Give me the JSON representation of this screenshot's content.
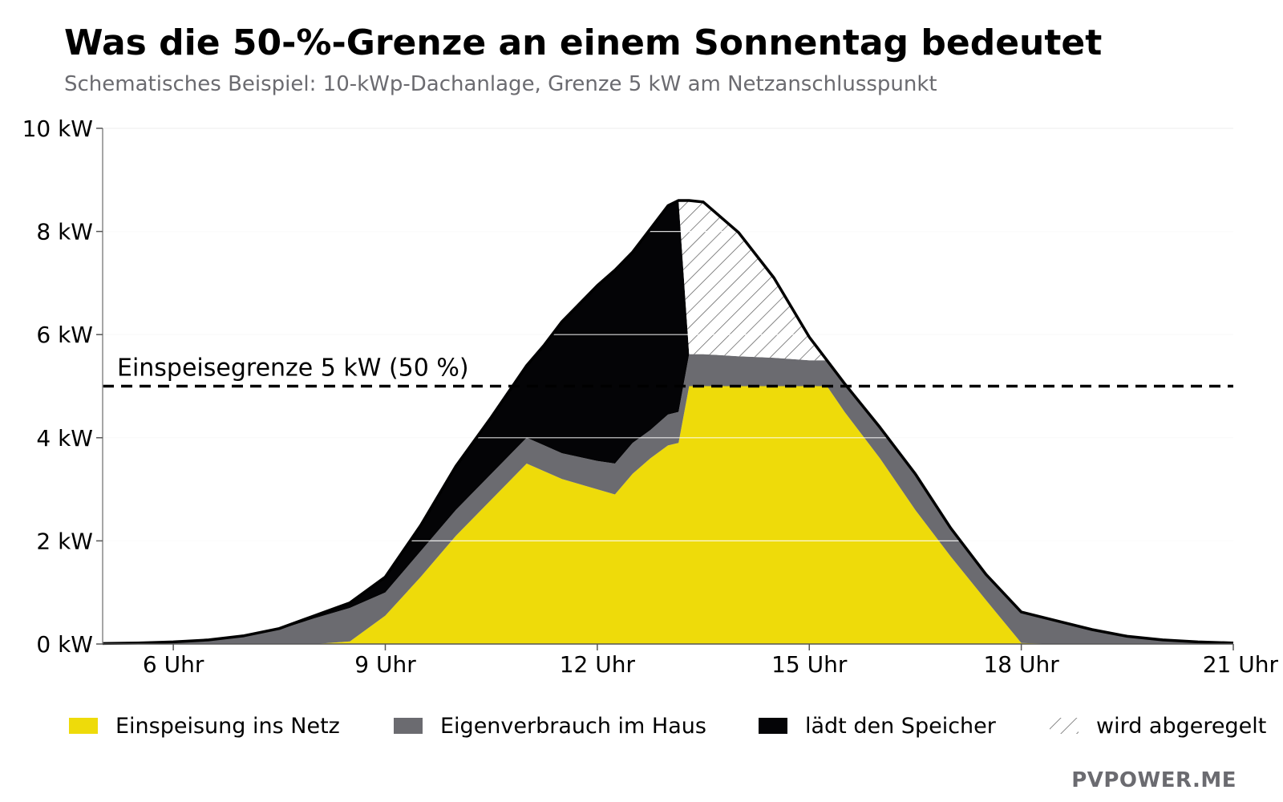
{
  "title": "Was die 50-%-Grenze an einem Sonnentag bedeutet",
  "subtitle": "Schematisches Beispiel: 10-kWp-Dachanlage, Grenze 5 kW am Netzanschlusspunkt",
  "brand": "PVPOWER.ME",
  "colors": {
    "einspeisung": "#eedb0a",
    "eigenverbrauch": "#6b6b70",
    "speicher": "#040406",
    "grid": "#ececec",
    "axis": "#888888"
  },
  "chart_data": {
    "type": "area",
    "stacked": true,
    "x_unit": "Uhr",
    "x": [
      5,
      5.5,
      6,
      6.5,
      7,
      7.5,
      8,
      8.5,
      9,
      9.5,
      10,
      10.5,
      11,
      11.25,
      11.5,
      12,
      12.25,
      12.5,
      12.75,
      13,
      13.15,
      13.3,
      13.5,
      14,
      14.5,
      15,
      15.25,
      15.5,
      16,
      16.5,
      17,
      17.5,
      18,
      18.5,
      19,
      19.5,
      20,
      20.5,
      21
    ],
    "series": [
      {
        "name": "Einspeisung ins Netz",
        "color": "#eedb0a",
        "values": [
          0,
          0,
          0,
          0,
          0,
          0,
          0,
          0.05,
          0.55,
          1.3,
          2.1,
          2.8,
          3.5,
          3.35,
          3.2,
          3.0,
          2.9,
          3.3,
          3.6,
          3.85,
          3.9,
          5.0,
          5.0,
          5.0,
          5.0,
          5.0,
          5.0,
          4.5,
          3.6,
          2.6,
          1.7,
          0.85,
          0.02,
          0,
          0,
          0,
          0,
          0,
          0
        ]
      },
      {
        "name": "Eigenverbrauch im Haus",
        "color": "#6b6b70",
        "values": [
          0.01,
          0.02,
          0.04,
          0.08,
          0.15,
          0.28,
          0.5,
          0.65,
          0.45,
          0.5,
          0.5,
          0.5,
          0.5,
          0.5,
          0.5,
          0.55,
          0.6,
          0.6,
          0.55,
          0.6,
          0.6,
          0.62,
          0.62,
          0.58,
          0.55,
          0.5,
          0.5,
          0.55,
          0.6,
          0.7,
          0.55,
          0.5,
          0.6,
          0.45,
          0.28,
          0.15,
          0.08,
          0.04,
          0.02
        ]
      },
      {
        "name": "lädt den Speicher",
        "color": "#040406",
        "values": [
          0,
          0,
          0,
          0,
          0.01,
          0.02,
          0.05,
          0.1,
          0.3,
          0.5,
          0.85,
          1.1,
          1.4,
          1.95,
          2.55,
          3.4,
          3.75,
          3.7,
          3.9,
          4.05,
          4.1,
          0,
          0,
          0,
          0,
          0,
          0,
          0,
          0,
          0,
          0,
          0,
          0,
          0,
          0,
          0,
          0,
          0,
          0
        ]
      },
      {
        "name": "wird abgeregelt",
        "pattern": "hatch",
        "values": [
          0,
          0,
          0,
          0,
          0,
          0,
          0,
          0,
          0,
          0,
          0,
          0,
          0,
          0,
          0,
          0,
          0,
          0,
          0,
          0,
          0,
          2.98,
          2.95,
          2.4,
          1.55,
          0.45,
          0.0,
          0,
          0,
          0,
          0,
          0,
          0,
          0,
          0,
          0,
          0,
          0,
          0
        ]
      }
    ],
    "total_generation": [
      0.01,
      0.02,
      0.04,
      0.08,
      0.16,
      0.3,
      0.55,
      0.8,
      1.3,
      2.3,
      3.45,
      4.4,
      5.4,
      5.8,
      6.25,
      6.95,
      7.25,
      7.6,
      8.05,
      8.5,
      8.6,
      8.6,
      8.57,
      7.98,
      7.1,
      5.95,
      5.5,
      5.05,
      4.2,
      3.3,
      2.25,
      1.35,
      0.62,
      0.45,
      0.28,
      0.15,
      0.08,
      0.04,
      0.02
    ],
    "limit": {
      "value": 5,
      "label": "Einspeisegrenze 5 kW (50 %)"
    },
    "xlim": [
      5,
      21
    ],
    "ylim": [
      0,
      10
    ],
    "xticks": [
      6,
      9,
      12,
      15,
      18,
      21
    ],
    "xtick_labels": [
      "6 Uhr",
      "9 Uhr",
      "12 Uhr",
      "15 Uhr",
      "18 Uhr",
      "21 Uhr"
    ],
    "yticks": [
      0,
      2,
      4,
      6,
      8,
      10
    ],
    "ytick_labels": [
      "0 kW",
      "2 kW",
      "4 kW",
      "6 kW",
      "8 kW",
      "10 kW"
    ],
    "grid": true,
    "legend_position": "bottom",
    "legend": [
      {
        "label": "Einspeisung ins Netz",
        "swatch": "#eedb0a"
      },
      {
        "label": "Eigenverbrauch im Haus",
        "swatch": "#6b6b70"
      },
      {
        "label": "lädt den Speicher",
        "swatch": "#040406"
      },
      {
        "label": "wird abgeregelt",
        "swatch": "hatch"
      }
    ]
  }
}
